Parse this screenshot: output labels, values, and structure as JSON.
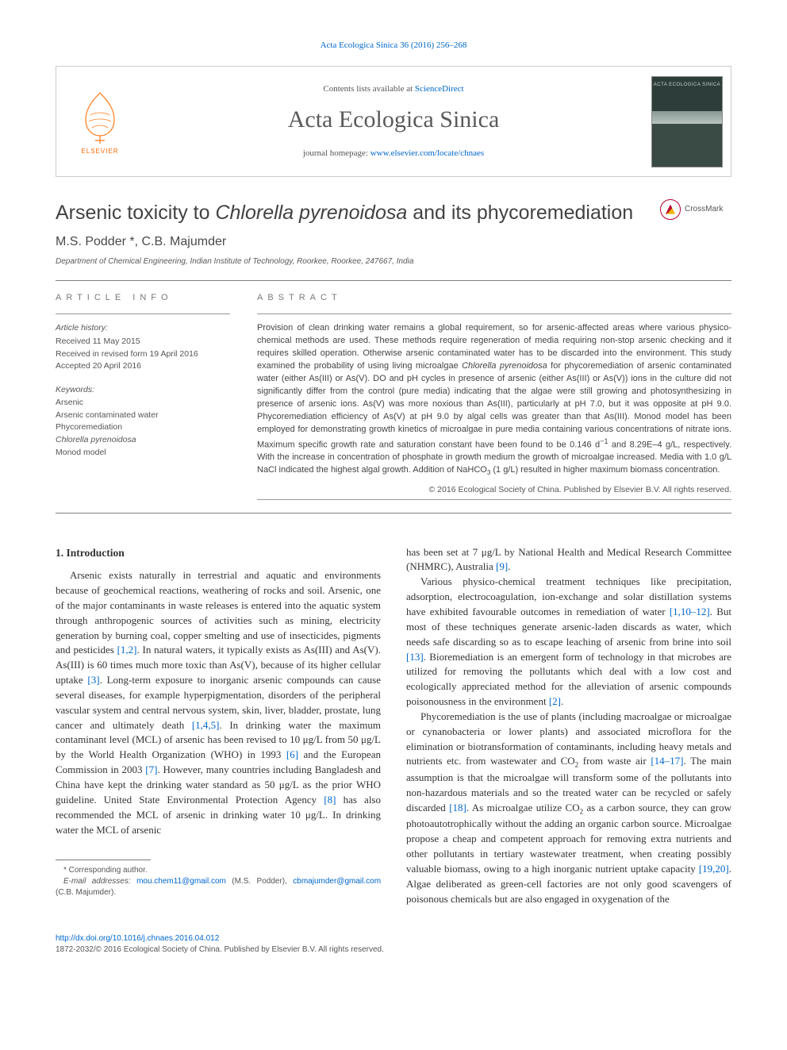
{
  "top_link": {
    "text": "Acta Ecologica Sinica 36 (2016) 256–268",
    "href": "#"
  },
  "masthead": {
    "contents_prefix": "Contents lists available at ",
    "contents_link": "ScienceDirect",
    "journal_name": "Acta Ecologica Sinica",
    "homepage_prefix": "journal homepage: ",
    "homepage_link": "www.elsevier.com/locate/chnaes",
    "elsevier_label": "ELSEVIER",
    "cover_label": "ACTA ECOLOGICA SINICA"
  },
  "crossmark_label": "CrossMark",
  "title_plain": "Arsenic toxicity to ",
  "title_italic": "Chlorella pyrenoidosa",
  "title_tail": " and its phycoremediation",
  "authors": "M.S. Podder *, C.B. Majumder",
  "affiliation": "Department of Chemical Engineering, Indian Institute of Technology, Roorkee, Roorkee, 247667, India",
  "article_info_label": "article info",
  "abstract_label": "abstract",
  "history": {
    "heading": "Article history:",
    "lines": [
      "Received 11 May 2015",
      "Received in revised form 19 April 2016",
      "Accepted 20 April 2016"
    ]
  },
  "keywords": {
    "heading": "Keywords:",
    "items": [
      {
        "text": "Arsenic",
        "italic": false
      },
      {
        "text": "Arsenic contaminated water",
        "italic": false
      },
      {
        "text": "Phycoremediation",
        "italic": false
      },
      {
        "text": "Chlorella pyrenoidosa",
        "italic": true
      },
      {
        "text": "Monod model",
        "italic": false
      }
    ]
  },
  "abstract_html": "Provision of clean drinking water remains a global requirement, so for arsenic-affected areas where various physico-chemical methods are used. These methods require regeneration of media requiring non-stop arsenic checking and it requires skilled operation. Otherwise arsenic contaminated water has to be discarded into the environment. This study examined the probability of using living microalgae <i>Chlorella pyrenoidosa</i> for phycoremediation of arsenic contaminated water (either As(III) or As(V). DO and pH cycles in presence of arsenic (either As(III) or As(V)) ions in the culture did not significantly differ from the control (pure media) indicating that the algae were still growing and photosynthesizing in presence of arsenic ions. As(V) was more noxious than As(III), particularly at pH 7.0, but it was opposite at pH 9.0. Phycoremediation efficiency of As(V) at pH 9.0 by algal cells was greater than that As(III). Monod model has been employed for demonstrating growth kinetics of microalgae in pure media containing various concentrations of nitrate ions. Maximum specific growth rate and saturation constant have been found to be 0.146 d<sup>−1</sup> and 8.29E–4 g/L, respectively. With the increase in concentration of phosphate in growth medium the growth of microalgae increased. Media with 1.0 g/L NaCl indicated the highest algal growth. Addition of NaHCO<sub>3</sub> (1 g/L) resulted in higher maximum biomass concentration.",
  "copyright": "© 2016 Ecological Society of China. Published by Elsevier B.V. All rights reserved.",
  "body_heading": "1. Introduction",
  "para_left_1_html": "Arsenic exists naturally in terrestrial and aquatic and environments because of geochemical reactions, weathering of rocks and soil. Arsenic, one of the major contaminants in waste releases is entered into the aquatic system through anthropogenic sources of activities such as mining, electricity generation by burning coal, copper smelting and use of insecticides, pigments and pesticides <a href='#'>[1,2]</a>. In natural waters, it typically exists as As(III) and As(V). As(III) is 60 times much more toxic than As(V), because of its higher cellular uptake <a href='#'>[3]</a>. Long-term exposure to inorganic arsenic compounds can cause several diseases, for example hyperpigmentation, disorders of the peripheral vascular system and central nervous system, skin, liver, bladder, prostate, lung cancer and ultimately death <a href='#'>[1,4,5]</a>. In drinking water the maximum contaminant level (MCL) of arsenic has been revised to 10 μg/L from 50 μg/L by the World Health Organization (WHO) in 1993 <a href='#'>[6]</a> and the European Commission in 2003 <a href='#'>[7]</a>. However, many countries including Bangladesh and China have kept the drinking water standard as 50 μg/L as the prior WHO guideline. United State Environmental Protection Agency <a href='#'>[8]</a> has also recommended the MCL of arsenic in drinking water 10 μg/L. In drinking water the MCL of arsenic",
  "para_right_1_html": "has been set at 7 μg/L by National Health and Medical Research Committee (NHMRC), Australia <a href='#'>[9]</a>.",
  "para_right_2_html": "Various physico-chemical treatment techniques like precipitation, adsorption, electrocoagulation, ion-exchange and solar distillation systems have exhibited favourable outcomes in remediation of water <a href='#'>[1,10–12]</a>. But most of these techniques generate arsenic-laden discards as water, which needs safe discarding so as to escape leaching of arsenic from brine into soil <a href='#'>[13]</a>. Bioremediation is an emergent form of technology in that microbes are utilized for removing the pollutants which deal with a low cost and ecologically appreciated method for the alleviation of arsenic compounds poisonousness in the environment <a href='#'>[2]</a>.",
  "para_right_3_html": "Phycoremediation is the use of plants (including macroalgae or microalgae or cynanobacteria or lower plants) and associated microflora for the elimination or biotransformation of contaminants, including heavy metals and nutrients etc. from wastewater and CO<sub>2</sub> from waste air <a href='#'>[14–17]</a>. The main assumption is that the microalgae will transform some of the pollutants into non-hazardous materials and so the treated water can be recycled or safely discarded <a href='#'>[18]</a>. As microalgae utilize CO<sub>2</sub> as a carbon source, they can grow photoautotrophically without the adding an organic carbon source. Microalgae propose a cheap and competent approach for removing extra nutrients and other pollutants in tertiary wastewater treatment, when creating possibly valuable biomass, owing to a high inorganic nutrient uptake capacity <a href='#'>[19,20]</a>. Algae deliberated as green-cell factories are not only good scavengers of poisonous chemicals but are also engaged in oxygenation of the",
  "footnotes": {
    "corr": "* Corresponding author.",
    "email_label": "E-mail addresses:",
    "email1": "mou.chem11@gmail.com",
    "email1_who": " (M.S. Podder), ",
    "email2": "cbmajumder@gmail.com",
    "email2_who": " (C.B. Majumder)."
  },
  "footer": {
    "doi": "http://dx.doi.org/10.1016/j.chnaes.2016.04.012",
    "rights": "1872-2032/© 2016 Ecological Society of China. Published by Elsevier B.V. All rights reserved."
  },
  "colors": {
    "link": "#0066cc",
    "text": "#333333",
    "muted": "#555555",
    "orange": "#ff6600",
    "crossmark_red": "#b9002f",
    "crossmark_yellow": "#f0b000"
  }
}
